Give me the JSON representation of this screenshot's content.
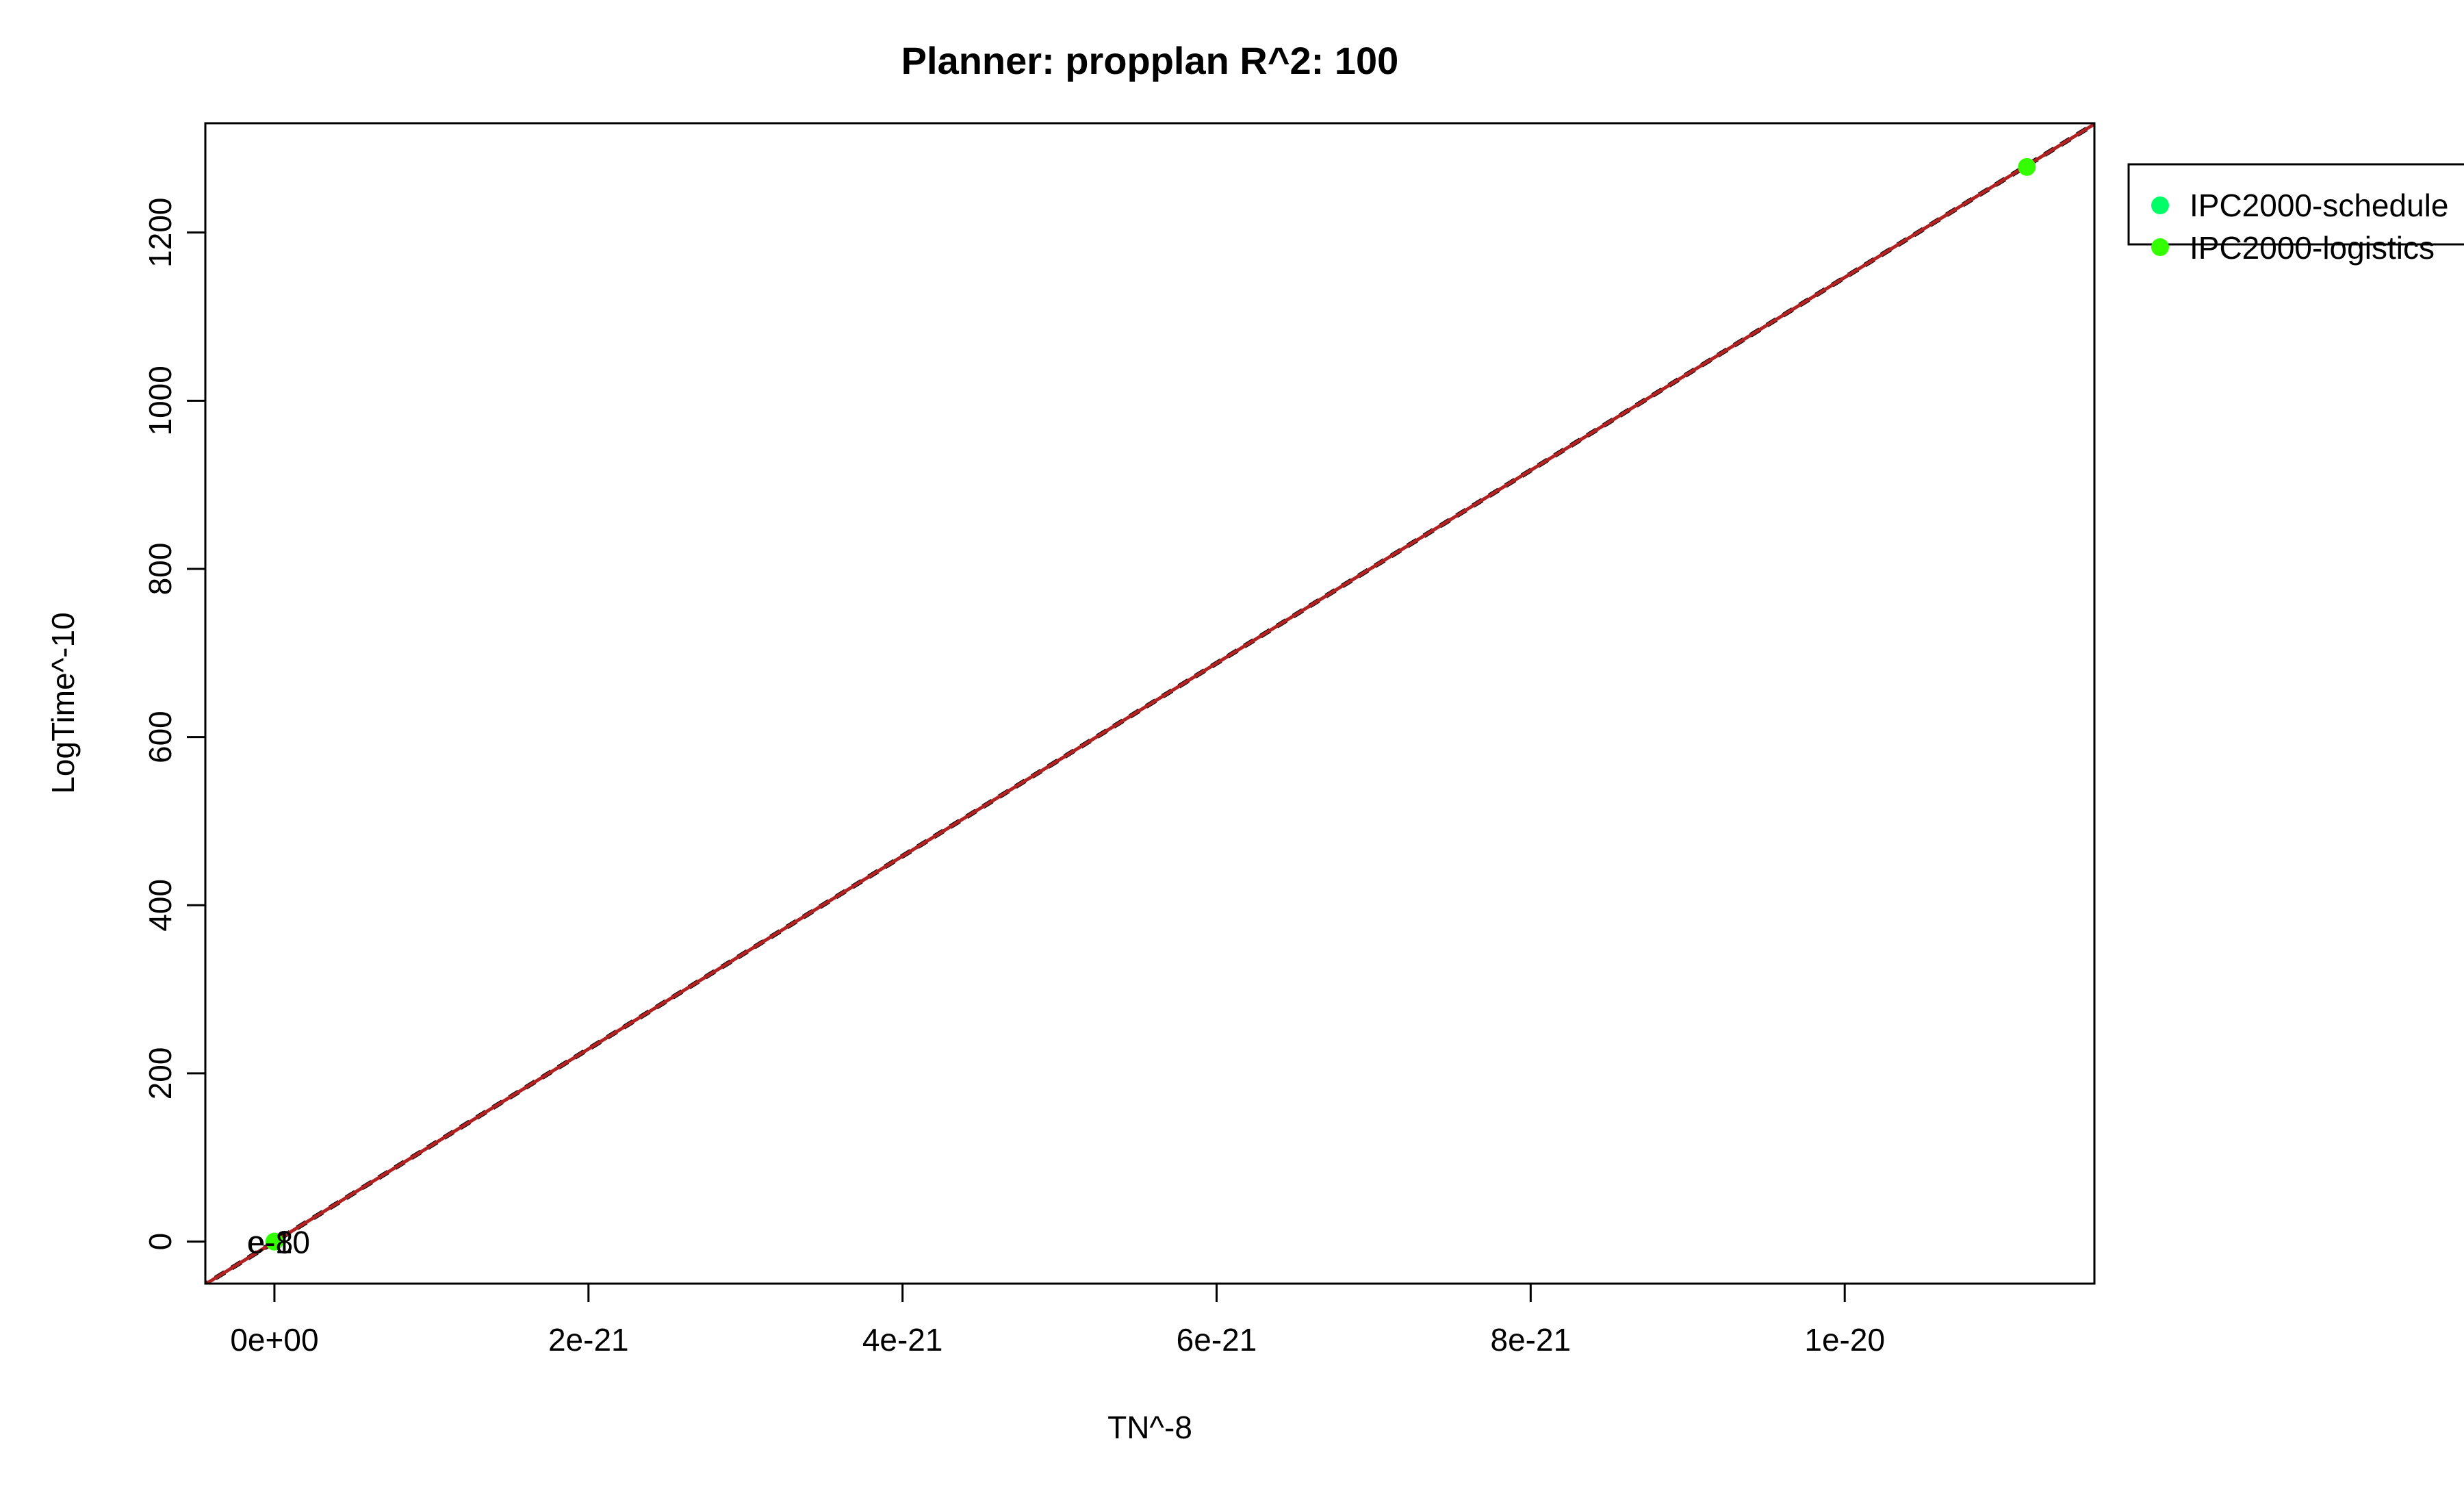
{
  "chart_data": {
    "type": "scatter",
    "title": "Planner: propplan R^2: 100",
    "xlabel": "TN^-8",
    "ylabel": "LogTime^-10",
    "xlim": [
      -4.4e-22,
      1.159e-20
    ],
    "ylim": [
      -50,
      1330
    ],
    "x_ticks": [
      0,
      2e-21,
      4e-21,
      6e-21,
      8e-21,
      1e-20
    ],
    "x_tick_labels": [
      "0e+00",
      "2e-21",
      "4e-21",
      "6e-21",
      "8e-21",
      "1e-20"
    ],
    "y_ticks": [
      0,
      200,
      400,
      600,
      800,
      1000,
      1200
    ],
    "y_tick_labels": [
      "0",
      "200",
      "400",
      "600",
      "800",
      "1000",
      "1200"
    ],
    "grid": false,
    "legend_position": "top-right, outside plot",
    "series": [
      {
        "name": "IPC2000-schedule",
        "color": "#00ff66",
        "points": [
          {
            "x": 0,
            "y": 0,
            "label": "e-8"
          }
        ]
      },
      {
        "name": "IPC2000-logistics",
        "color": "#33ff00",
        "points": [
          {
            "x": 0,
            "y": 0,
            "label": "e-10"
          },
          {
            "x": 1.116e-20,
            "y": 1278,
            "label": ""
          }
        ]
      }
    ],
    "fit_lines": [
      {
        "color": "#000000",
        "dashed": true,
        "from": [
          -1e-21,
          -115
        ],
        "to": [
          1.2e-20,
          1376
        ]
      },
      {
        "color": "#b22222",
        "dashed": false,
        "from": [
          -1e-21,
          -115
        ],
        "to": [
          1.2e-20,
          1376
        ]
      }
    ]
  }
}
